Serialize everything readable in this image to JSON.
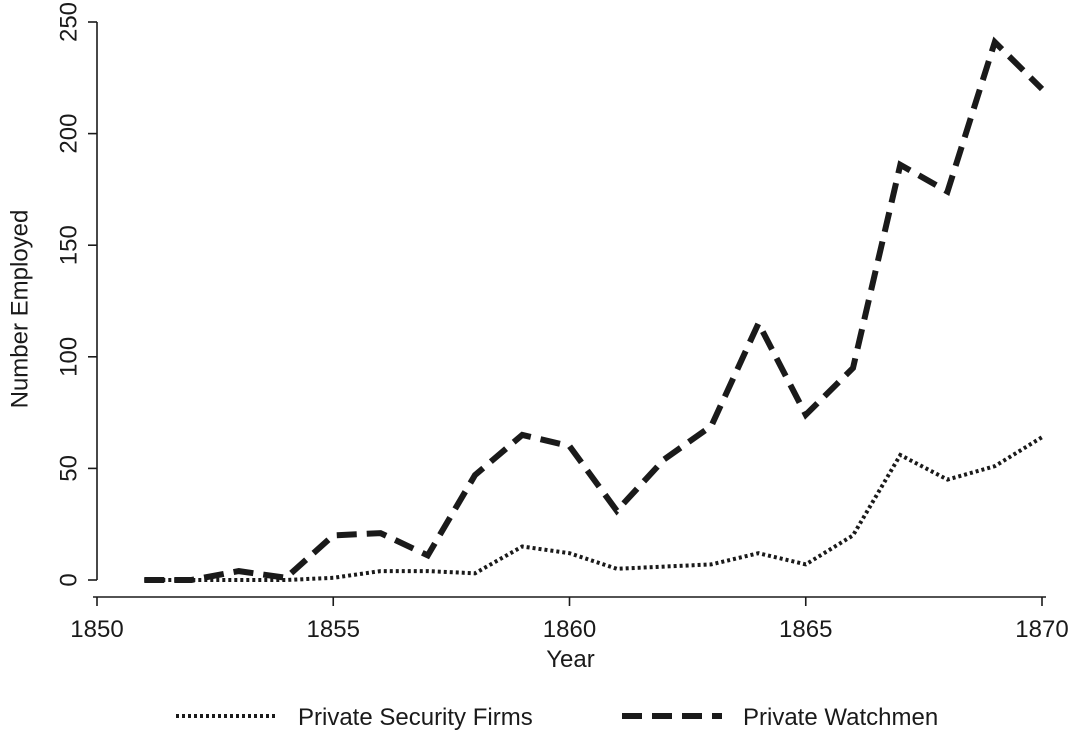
{
  "chart_data": {
    "type": "line",
    "xlabel": "Year",
    "ylabel": "Number Employed",
    "xlim": [
      1850,
      1870
    ],
    "ylim": [
      0,
      250
    ],
    "x_ticks": [
      1850,
      1855,
      1860,
      1865,
      1870
    ],
    "y_ticks": [
      0,
      50,
      100,
      150,
      200,
      250
    ],
    "grid": false,
    "legend_position": "bottom",
    "x": [
      1851,
      1852,
      1853,
      1854,
      1855,
      1856,
      1857,
      1858,
      1859,
      1860,
      1861,
      1862,
      1863,
      1864,
      1865,
      1866,
      1867,
      1868,
      1869,
      1870
    ],
    "series": [
      {
        "name": "Private Security Firms",
        "style": "dotted",
        "color": "#1a1a1a",
        "values": [
          0,
          0,
          0,
          0,
          1,
          4,
          4,
          3,
          15,
          12,
          5,
          6,
          7,
          12,
          7,
          20,
          56,
          45,
          51,
          64
        ]
      },
      {
        "name": "Private Watchmen",
        "style": "dashed",
        "color": "#1a1a1a",
        "values": [
          0,
          0,
          4,
          1,
          20,
          21,
          11,
          47,
          65,
          60,
          31,
          54,
          69,
          115,
          74,
          95,
          186,
          174,
          241,
          220
        ]
      }
    ]
  }
}
